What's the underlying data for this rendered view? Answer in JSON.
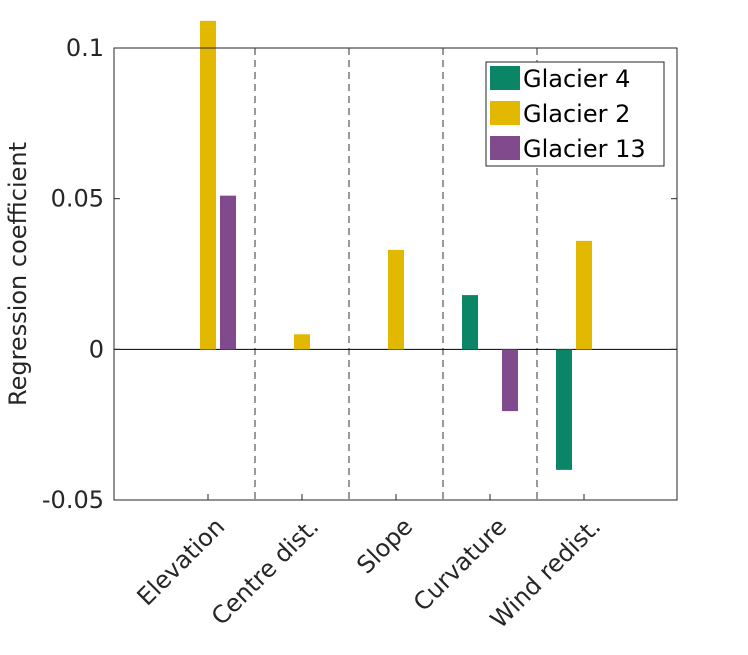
{
  "chart_data": {
    "type": "bar",
    "categories": [
      "Elevation",
      "Centre dist.",
      "Slope",
      "Curvature",
      "Wind redist."
    ],
    "series": [
      {
        "name": "Glacier 4",
        "color": "#0a8566",
        "values": [
          0,
          0,
          0,
          0.018,
          -0.04
        ]
      },
      {
        "name": "Glacier 2",
        "color": "#e3b800",
        "values": [
          0.109,
          0.005,
          0.033,
          0,
          0.036
        ]
      },
      {
        "name": "Glacier 13",
        "color": "#804a8c",
        "values": [
          0.051,
          0,
          0,
          -0.0205,
          0
        ]
      }
    ],
    "ylabel": "Regression coefficient",
    "ylim": [
      -0.05,
      0.1
    ],
    "yticks": [
      -0.05,
      0,
      0.05,
      0.1
    ],
    "ytick_labels": [
      "-0.05",
      "0",
      "0.05",
      "0.1"
    ],
    "category_separators": "dashed",
    "zero_line": true,
    "legend": "top-right"
  }
}
